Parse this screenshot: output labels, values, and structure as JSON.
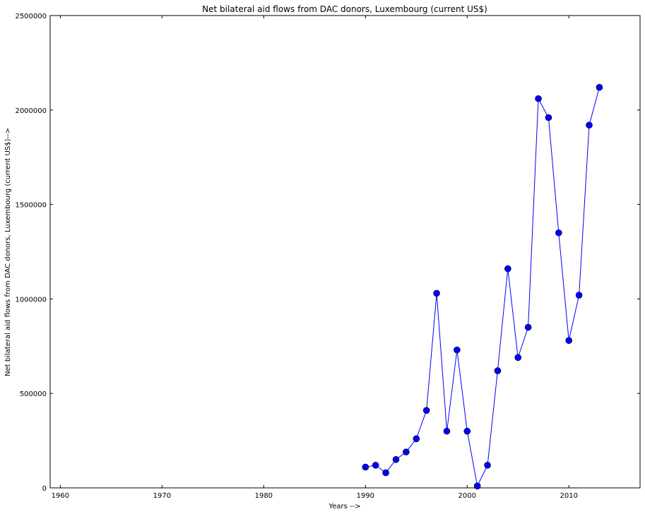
{
  "chart_data": {
    "type": "line",
    "title": "Net bilateral aid flows from DAC donors, Luxembourg (current US$)",
    "xlabel": "Years -->",
    "ylabel": "Net bilateral aid flows from DAC donors, Luxembourg (current US$)-->",
    "xlim": [
      1959,
      2017
    ],
    "ylim": [
      0,
      2500000
    ],
    "xticks": [
      1960,
      1970,
      1980,
      1990,
      2000,
      2010
    ],
    "yticks": [
      0,
      500000,
      1000000,
      1500000,
      2000000,
      2500000
    ],
    "grid": false,
    "marker": "circle",
    "line_color": "#0000ff",
    "series": [
      {
        "x": [
          1990,
          1991,
          1992,
          1993,
          1994,
          1995,
          1996,
          1997,
          1998,
          1999,
          2000,
          2001,
          2002,
          2003,
          2004,
          2005,
          2006,
          2007,
          2008,
          2009,
          2010,
          2011,
          2012,
          2013
        ],
        "y": [
          110000,
          120000,
          80000,
          150000,
          190000,
          260000,
          410000,
          1030000,
          300000,
          730000,
          300000,
          10000,
          120000,
          620000,
          1160000,
          690000,
          850000,
          2060000,
          1960000,
          1350000,
          780000,
          1020000,
          1920000,
          2120000
        ]
      }
    ]
  }
}
